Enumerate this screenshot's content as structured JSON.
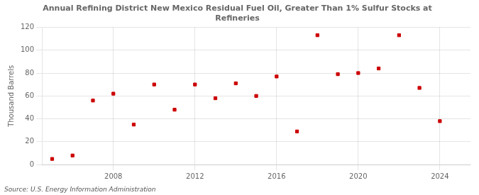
{
  "chart_data": {
    "type": "scatter",
    "title": [
      "Annual Refining District New Mexico Residual Fuel Oil, Greater Than 1% Sulfur Stocks at",
      "Refineries"
    ],
    "ylabel": "Thousand Barrels",
    "source": "Source: U.S. Energy Information Administration",
    "x": [
      2005,
      2006,
      2007,
      2008,
      2009,
      2010,
      2011,
      2012,
      2013,
      2014,
      2015,
      2016,
      2017,
      2018,
      2019,
      2020,
      2021,
      2022,
      2023,
      2024
    ],
    "values": [
      5,
      8,
      56,
      62,
      35,
      70,
      48,
      70,
      58,
      71,
      60,
      77,
      29,
      113,
      79,
      80,
      84,
      113,
      67,
      38
    ],
    "color": "#cc0000",
    "marker": "square",
    "xlim": [
      2004.5,
      2025.5
    ],
    "xticks": [
      2008,
      2012,
      2016,
      2020,
      2024
    ],
    "ylim": [
      0,
      120
    ],
    "yticks": [
      0,
      20,
      40,
      60,
      80,
      100,
      120
    ],
    "grid": true
  }
}
